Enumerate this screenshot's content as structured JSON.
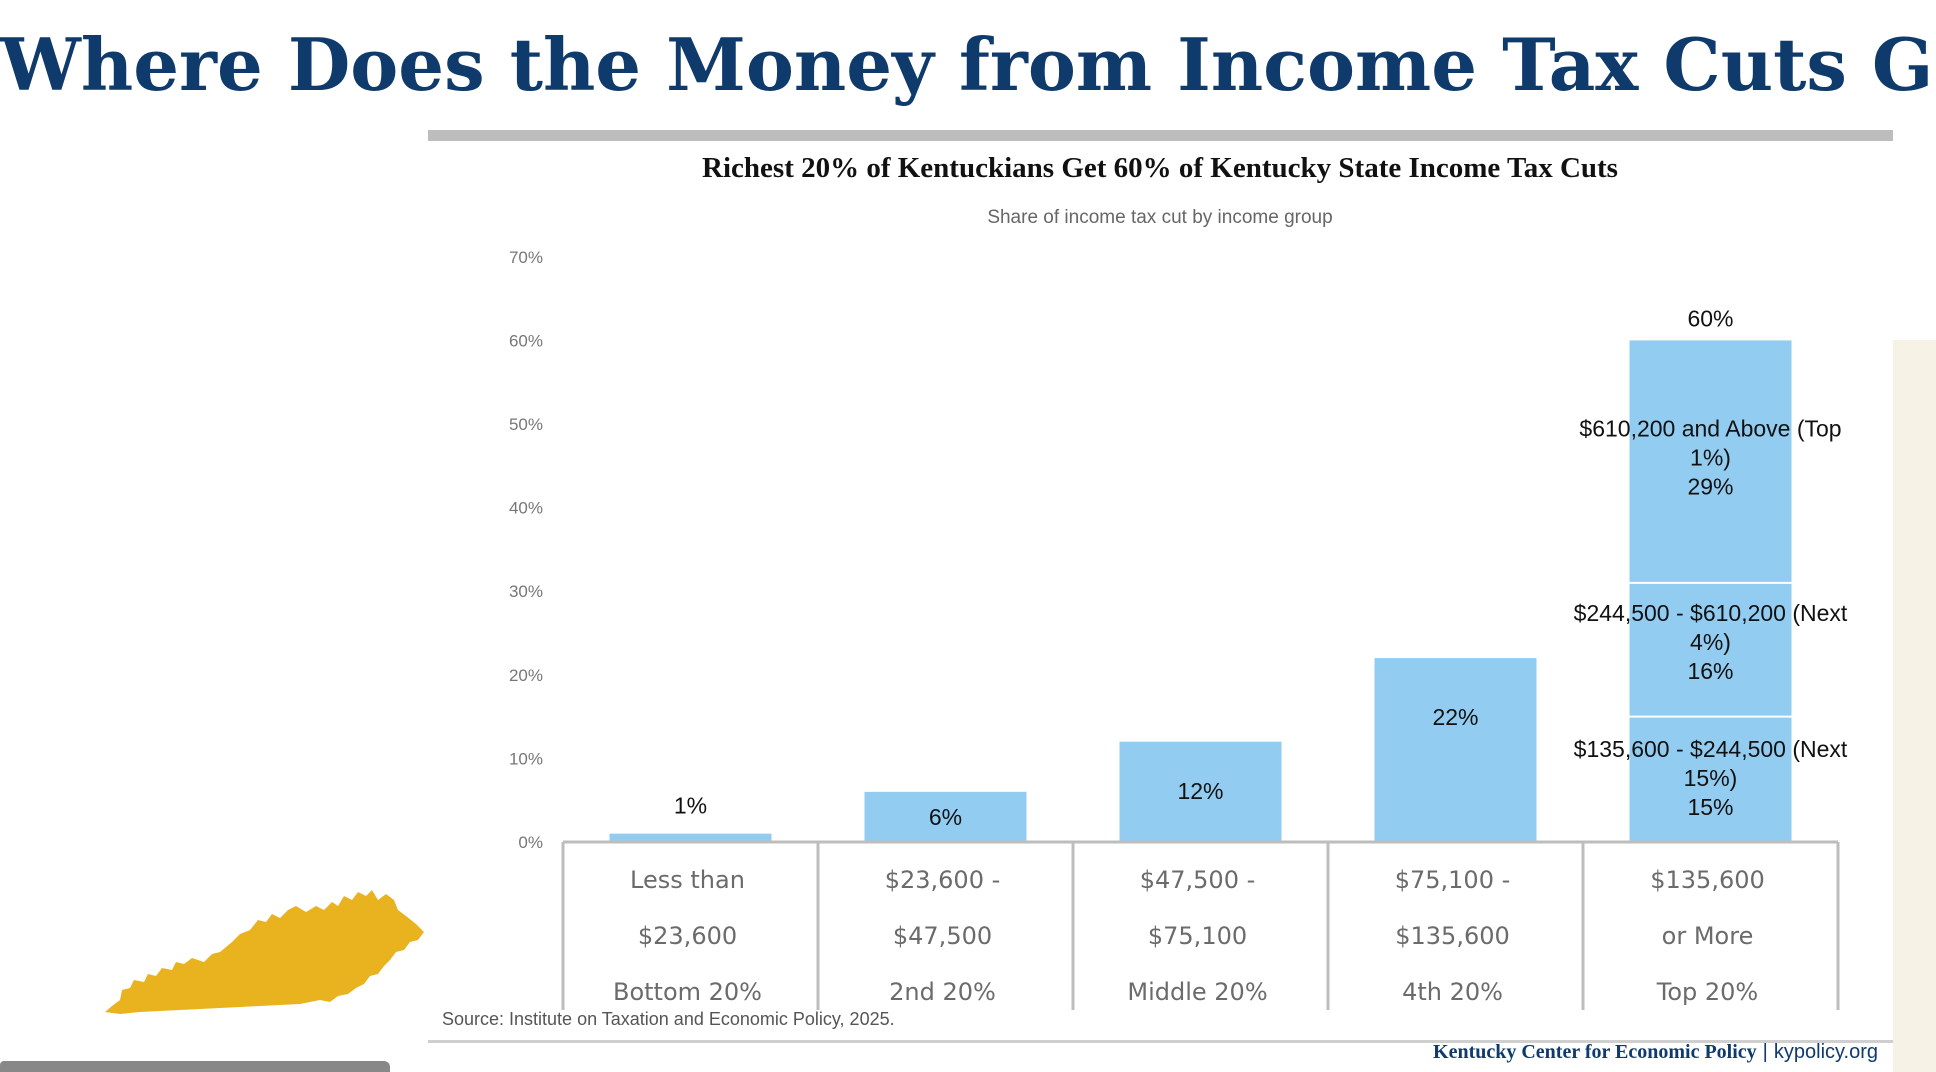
{
  "slide": {
    "title": "Where Does the Money from Income Tax Cuts Go?",
    "source": "Source: Institute on Taxation and Economic Policy, 2025.",
    "footer_org": "Kentucky Center for Economic Policy",
    "footer_sep": "|",
    "footer_site": "kypolicy.org"
  },
  "colors": {
    "bar": "#92cdf1",
    "title": "#0f3b6c",
    "state": "#e9b31f",
    "axis": "#bdbdbd"
  },
  "chart_data": {
    "type": "bar",
    "title": "Richest 20% of Kentuckians Get 60% of Kentucky State Income Tax Cuts",
    "subtitle": "Share of income tax cut by income group",
    "ylim": [
      0,
      70
    ],
    "yticks": [
      "0%",
      "10%",
      "20%",
      "30%",
      "40%",
      "50%",
      "60%",
      "70%"
    ],
    "ytick_values": [
      0,
      10,
      20,
      30,
      40,
      50,
      60,
      70
    ],
    "categories": [
      {
        "lines": [
          "Less than",
          "$23,600",
          "Bottom 20%"
        ],
        "value": 1,
        "label": "1%"
      },
      {
        "lines": [
          "$23,600 -",
          "$47,500",
          "2nd 20%"
        ],
        "value": 6,
        "label": "6%"
      },
      {
        "lines": [
          "$47,500 -",
          "$75,100",
          "Middle 20%"
        ],
        "value": 12,
        "label": "12%"
      },
      {
        "lines": [
          "$75,100 -",
          "$135,600",
          "4th 20%"
        ],
        "value": 22,
        "label": "22%"
      },
      {
        "lines": [
          "$135,600",
          "or More",
          "Top 20%"
        ],
        "value": 60,
        "label": "60%",
        "segments": [
          {
            "value": 15,
            "label_lines": [
              "$135,600 - $244,500 (Next",
              "15%)",
              "15%"
            ]
          },
          {
            "value": 16,
            "label_lines": [
              "$244,500 - $610,200 (Next",
              "4%)",
              "16%"
            ]
          },
          {
            "value": 29,
            "label_lines": [
              "$610,200 and Above (Top",
              "1%)",
              "29%"
            ]
          }
        ]
      }
    ]
  }
}
